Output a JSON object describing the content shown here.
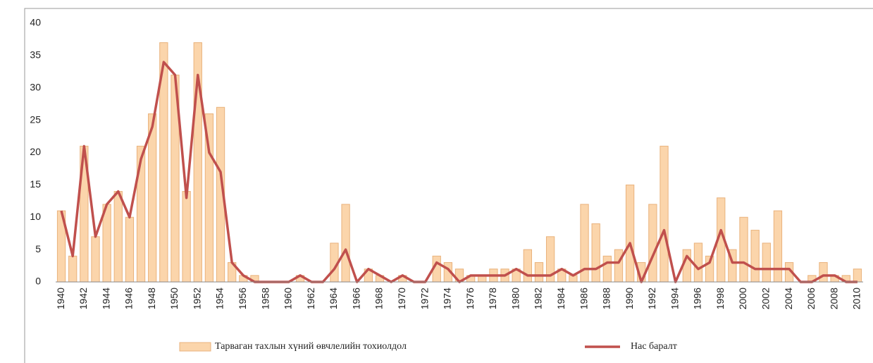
{
  "chart_data": {
    "type": "bar-line",
    "categories": [
      "1940",
      null,
      "1942",
      null,
      "1944",
      null,
      "1946",
      null,
      "1948",
      null,
      "1950",
      null,
      "1952",
      null,
      "1954",
      null,
      "1956",
      null,
      "1958",
      null,
      "1960",
      null,
      "1962",
      null,
      "1964",
      null,
      "1966",
      null,
      "1968",
      null,
      "1970",
      null,
      "1972",
      null,
      "1974",
      null,
      "1976",
      null,
      "1978",
      null,
      "1980",
      null,
      "1982",
      null,
      "1984",
      null,
      "1986",
      null,
      "1988",
      null,
      "1990",
      null,
      "1992",
      null,
      "1994",
      null,
      "1996",
      null,
      "1998",
      null,
      "2000",
      null,
      "2002",
      null,
      "2004",
      null,
      "2006",
      null,
      "2008",
      null,
      "2010"
    ],
    "series": [
      {
        "name": "Тарваган тахлын хүний өвчлелийн тохиолдол",
        "type": "bar",
        "color": "#fbd5ab",
        "values": [
          11,
          4,
          21,
          7,
          12,
          14,
          10,
          21,
          26,
          37,
          32,
          14,
          37,
          26,
          27,
          3,
          1,
          1,
          0,
          0,
          0,
          1,
          0,
          0,
          6,
          12,
          0,
          2,
          1,
          0,
          1,
          0,
          0,
          4,
          3,
          2,
          1,
          1,
          2,
          2,
          2,
          5,
          3,
          7,
          2,
          1,
          12,
          9,
          4,
          5,
          15,
          3,
          12,
          21,
          0,
          5,
          6,
          4,
          13,
          5,
          10,
          8,
          6,
          11,
          3,
          0,
          1,
          3,
          1,
          1,
          2
        ]
      },
      {
        "name": "Нас баралт",
        "type": "line",
        "color": "#c0504d",
        "values": [
          11,
          4,
          21,
          7,
          12,
          14,
          10,
          19,
          24,
          34,
          32,
          13,
          32,
          20,
          17,
          3,
          1,
          0,
          0,
          0,
          0,
          1,
          0,
          0,
          2,
          5,
          0,
          2,
          1,
          0,
          1,
          0,
          0,
          3,
          2,
          0,
          1,
          1,
          1,
          1,
          2,
          1,
          1,
          1,
          2,
          1,
          2,
          2,
          3,
          3,
          6,
          0,
          4,
          8,
          0,
          4,
          2,
          3,
          8,
          3,
          3,
          2,
          2,
          2,
          2,
          0,
          0,
          1,
          1,
          0,
          0
        ]
      }
    ],
    "ylim": [
      0,
      40
    ],
    "yticks": [
      0,
      5,
      10,
      15,
      20,
      25,
      30,
      35,
      40
    ],
    "grid": false,
    "legend": "bottom"
  }
}
